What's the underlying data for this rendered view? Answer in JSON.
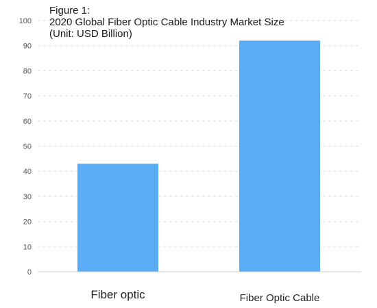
{
  "chart_data": {
    "type": "bar",
    "title_lines": [
      "Figure 1:",
      "2020 Global Fiber Optic Cable Industry Market Size",
      "(Unit: USD Billion)"
    ],
    "categories": [
      "Fiber optic",
      "Fiber Optic Cable"
    ],
    "values": [
      43,
      92
    ],
    "ylim": [
      0,
      100
    ],
    "yticks": [
      0,
      10,
      20,
      30,
      40,
      50,
      60,
      70,
      80,
      90,
      100
    ],
    "grid": true,
    "bar_color": "#5aacf5"
  }
}
